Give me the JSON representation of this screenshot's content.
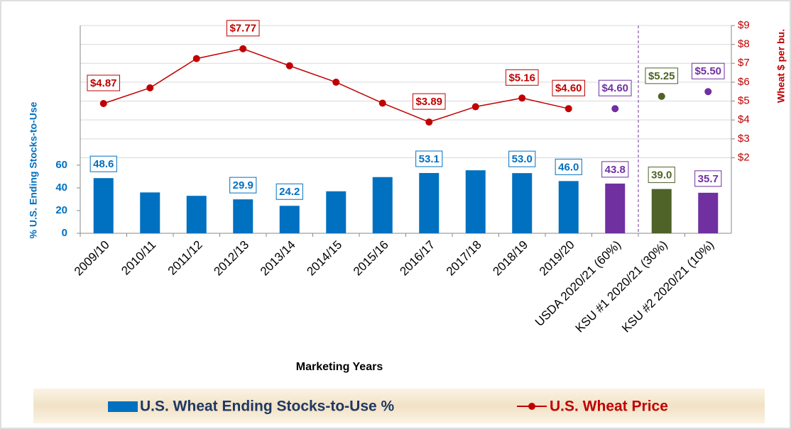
{
  "chart_data": {
    "type": "bar-line",
    "x_label": "Marketing Years",
    "y_label": "% U.S. Ending Stocks-to-Use",
    "y2_label": "Wheat $ per bu.",
    "categories": [
      "2009/10",
      "2010/11",
      "2011/12",
      "2012/13",
      "2013/14",
      "2014/15",
      "2015/16",
      "2016/17",
      "2017/18",
      "2018/19",
      "2019/20",
      "USDA 2020/21 (60%)",
      "KSU #1 2020/21 (30%)",
      "KSU #2 2020/21 (10%)"
    ],
    "divider_after_category": "USDA 2020/21 (60%)",
    "ylim": [
      0,
      183
    ],
    "yticks": [
      0,
      20,
      40,
      60
    ],
    "y2lim": [
      -2,
      9
    ],
    "y2ticks": [
      {
        "value": 2,
        "label": "$2"
      },
      {
        "value": 3,
        "label": "$3"
      },
      {
        "value": 4,
        "label": "$4"
      },
      {
        "value": 5,
        "label": "$5"
      },
      {
        "value": 6,
        "label": "$6"
      },
      {
        "value": 7,
        "label": "$7"
      },
      {
        "value": 8,
        "label": "$8"
      },
      {
        "value": 9,
        "label": "$9"
      }
    ],
    "grid": true,
    "series": [
      {
        "name": "U.S. Wheat Ending Stocks-to-Use %",
        "kind": "bar",
        "color": "#0070c0",
        "colors": [
          "#0070c0",
          "#0070c0",
          "#0070c0",
          "#0070c0",
          "#0070c0",
          "#0070c0",
          "#0070c0",
          "#0070c0",
          "#0070c0",
          "#0070c0",
          "#0070c0",
          "#7030a0",
          "#4f6228",
          "#7030a0"
        ],
        "values": [
          48.6,
          36,
          33,
          29.9,
          24.2,
          37,
          49.5,
          53.1,
          55.5,
          53.0,
          46.0,
          43.8,
          39.0,
          35.7
        ],
        "value_labels": [
          "48.6",
          null,
          null,
          "29.9",
          "24.2",
          null,
          null,
          "53.1",
          null,
          "53.0",
          "46.0",
          "43.8",
          "39.0",
          "35.7"
        ]
      },
      {
        "name": "U.S. Wheat Price",
        "kind": "line",
        "axis": "y2",
        "color": "#c00000",
        "values": [
          4.87,
          5.7,
          7.25,
          7.77,
          6.87,
          6.0,
          4.89,
          3.89,
          4.7,
          5.16,
          4.6,
          null,
          null,
          null
        ],
        "value_labels": [
          "$4.87",
          null,
          null,
          "$7.77",
          null,
          null,
          null,
          "$3.89",
          null,
          "$5.16",
          "$4.60",
          null,
          null,
          null
        ]
      },
      {
        "kind": "points",
        "axis": "y2",
        "colors": [
          null,
          null,
          null,
          null,
          null,
          null,
          null,
          null,
          null,
          null,
          null,
          "#7030a0",
          "#4f6228",
          "#7030a0"
        ],
        "values": [
          null,
          null,
          null,
          null,
          null,
          null,
          null,
          null,
          null,
          null,
          null,
          4.6,
          5.25,
          5.5
        ],
        "value_labels": [
          null,
          null,
          null,
          null,
          null,
          null,
          null,
          null,
          null,
          null,
          null,
          "$4.60",
          "$5.25",
          "$5.50"
        ]
      }
    ]
  }
}
